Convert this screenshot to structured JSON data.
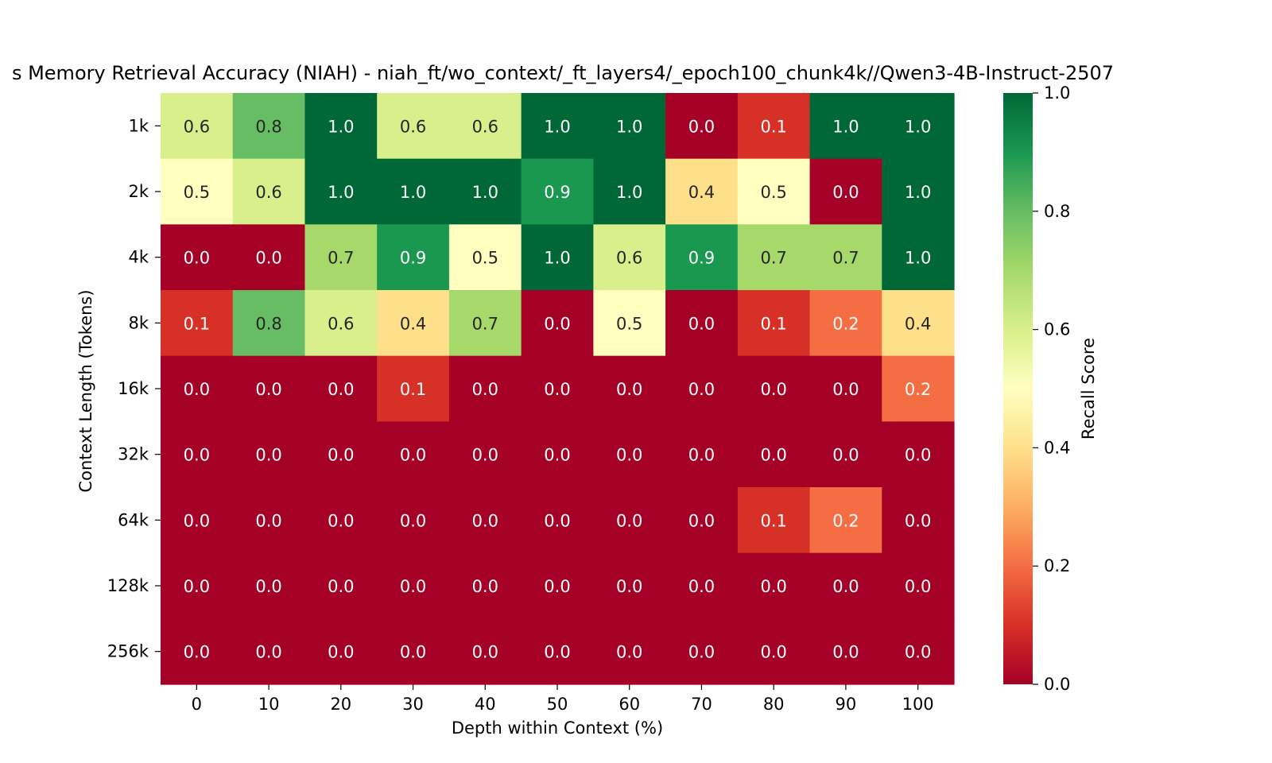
{
  "chart_data": {
    "type": "heatmap",
    "title": "s Memory Retrieval Accuracy (NIAH) - niah_ft/wo_context/_ft_layers4/_epoch100_chunk4k//Qwen3-4B-Instruct-2507",
    "xlabel": "Depth within Context (%)",
    "ylabel": "Context Length (Tokens)",
    "x": [
      "0",
      "10",
      "20",
      "30",
      "40",
      "50",
      "60",
      "70",
      "80",
      "90",
      "100"
    ],
    "y": [
      "1k",
      "2k",
      "4k",
      "8k",
      "16k",
      "32k",
      "64k",
      "128k",
      "256k"
    ],
    "values": [
      [
        0.6,
        0.8,
        1.0,
        0.6,
        0.6,
        1.0,
        1.0,
        0.0,
        0.1,
        1.0,
        1.0
      ],
      [
        0.5,
        0.6,
        1.0,
        1.0,
        1.0,
        0.9,
        1.0,
        0.4,
        0.5,
        0.0,
        1.0
      ],
      [
        0.0,
        0.0,
        0.7,
        0.9,
        0.5,
        1.0,
        0.6,
        0.9,
        0.7,
        0.7,
        1.0
      ],
      [
        0.1,
        0.8,
        0.6,
        0.4,
        0.7,
        0.0,
        0.5,
        0.0,
        0.1,
        0.2,
        0.4
      ],
      [
        0.0,
        0.0,
        0.0,
        0.1,
        0.0,
        0.0,
        0.0,
        0.0,
        0.0,
        0.0,
        0.2
      ],
      [
        0.0,
        0.0,
        0.0,
        0.0,
        0.0,
        0.0,
        0.0,
        0.0,
        0.0,
        0.0,
        0.0
      ],
      [
        0.0,
        0.0,
        0.0,
        0.0,
        0.0,
        0.0,
        0.0,
        0.0,
        0.1,
        0.2,
        0.0
      ],
      [
        0.0,
        0.0,
        0.0,
        0.0,
        0.0,
        0.0,
        0.0,
        0.0,
        0.0,
        0.0,
        0.0
      ],
      [
        0.0,
        0.0,
        0.0,
        0.0,
        0.0,
        0.0,
        0.0,
        0.0,
        0.0,
        0.0,
        0.0
      ]
    ],
    "colorbar": {
      "label": "Recall Score",
      "range": [
        0.0,
        1.0
      ],
      "ticks": [
        "0.0",
        "0.2",
        "0.4",
        "0.6",
        "0.8",
        "1.0"
      ],
      "colormap": "RdYlGn"
    },
    "grid": false,
    "legend": "colorbar-right"
  }
}
